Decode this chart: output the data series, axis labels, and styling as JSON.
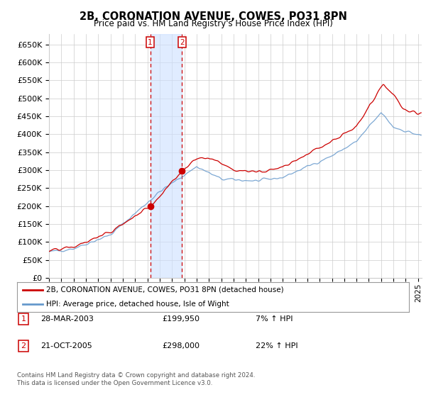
{
  "title": "2B, CORONATION AVENUE, COWES, PO31 8PN",
  "subtitle": "Price paid vs. HM Land Registry's House Price Index (HPI)",
  "ylim": [
    0,
    680000
  ],
  "ytick_values": [
    0,
    50000,
    100000,
    150000,
    200000,
    250000,
    300000,
    350000,
    400000,
    450000,
    500000,
    550000,
    600000,
    650000
  ],
  "sale1_date": 2003.23,
  "sale1_price": 199950,
  "sale1_label": "1",
  "sale2_date": 2005.81,
  "sale2_price": 298000,
  "sale2_label": "2",
  "sale1_display": "28-MAR-2003",
  "sale1_amount": "£199,950",
  "sale1_hpi": "7% ↑ HPI",
  "sale2_display": "21-OCT-2005",
  "sale2_amount": "£298,000",
  "sale2_hpi": "22% ↑ HPI",
  "legend_line1": "2B, CORONATION AVENUE, COWES, PO31 8PN (detached house)",
  "legend_line2": "HPI: Average price, detached house, Isle of Wight",
  "footer": "Contains HM Land Registry data © Crown copyright and database right 2024.\nThis data is licensed under the Open Government Licence v3.0.",
  "line_color_red": "#cc0000",
  "line_color_blue": "#6699cc",
  "shading_color": "#cce0ff",
  "grid_color": "#cccccc",
  "background_color": "#ffffff",
  "box_color": "#cc0000",
  "xlim_start": 1995,
  "xlim_end": 2025.3
}
